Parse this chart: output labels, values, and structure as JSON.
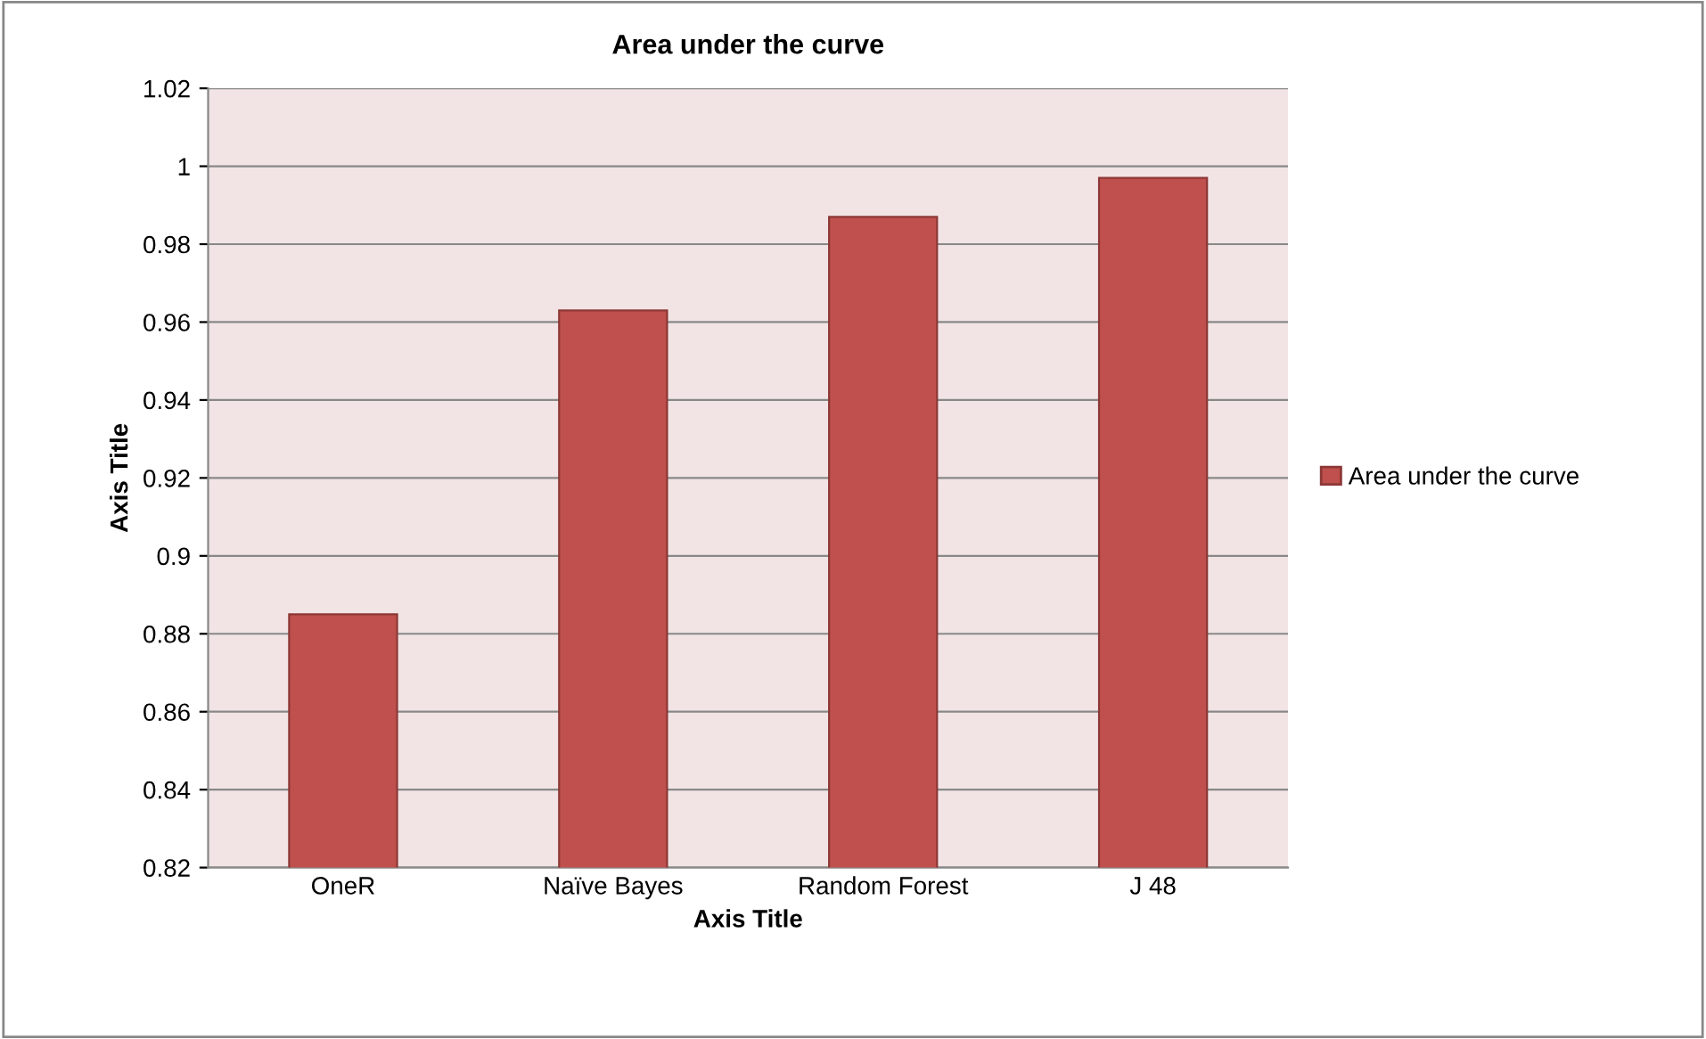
{
  "chart_data": {
    "type": "bar",
    "title": "Area under the curve",
    "xlabel": "Axis Title",
    "ylabel": "Axis Title",
    "categories": [
      "OneR",
      "Naïve Bayes",
      "Random Forest",
      "J 48"
    ],
    "series": [
      {
        "name": "Area under the curve",
        "color": "#c0504d",
        "values": [
          0.885,
          0.963,
          0.987,
          0.997
        ]
      }
    ],
    "ylim": [
      0.82,
      1.02
    ],
    "yticks": [
      {
        "value": 0.82,
        "label": "0.82"
      },
      {
        "value": 0.84,
        "label": "0.84"
      },
      {
        "value": 0.86,
        "label": "0.86"
      },
      {
        "value": 0.88,
        "label": "0.88"
      },
      {
        "value": 0.9,
        "label": "0.9"
      },
      {
        "value": 0.92,
        "label": "0.92"
      },
      {
        "value": 0.94,
        "label": "0.94"
      },
      {
        "value": 0.96,
        "label": "0.96"
      },
      {
        "value": 0.98,
        "label": "0.98"
      },
      {
        "value": 1,
        "label": "1"
      },
      {
        "value": 1.02,
        "label": "1.02"
      }
    ],
    "grid": "y",
    "legend": "right"
  }
}
